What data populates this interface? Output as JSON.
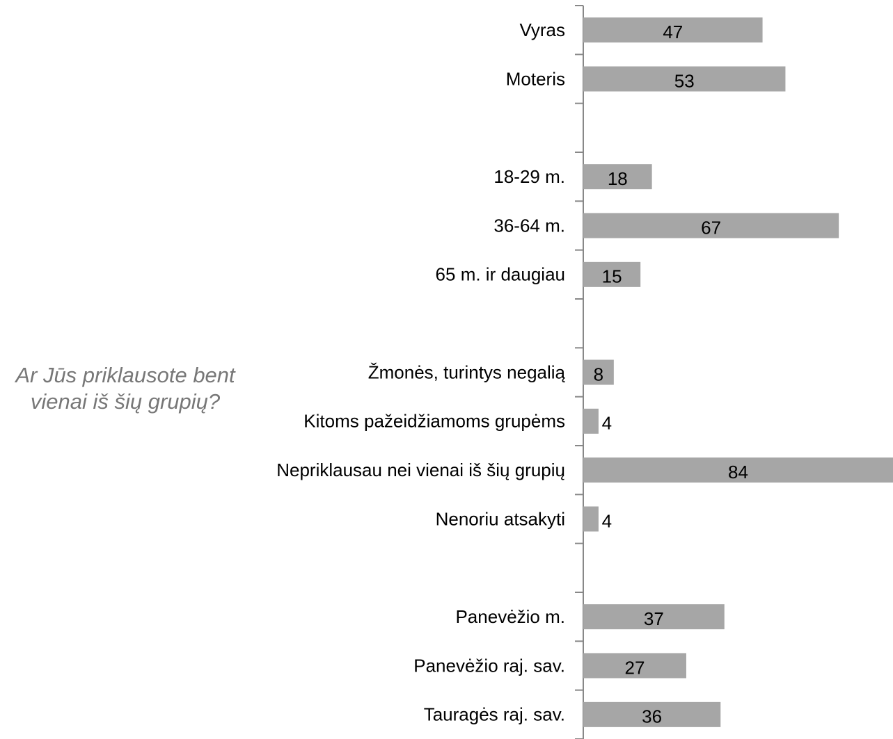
{
  "chart_data": {
    "type": "hbar",
    "categories": [
      "Vyras",
      "Moteris",
      null,
      "18-29 m.",
      "36-64 m.",
      "65 m. ir daugiau",
      null,
      "Žmonės, turintys negalią",
      "Kitoms pažeidžiamoms grupėms",
      "Nepriklausau nei vienai iš šių grupių",
      "Nenoriu atsakyti",
      null,
      "Panevėžio m.",
      "Panevėžio raj. sav.",
      "Tauragės raj. sav."
    ],
    "values": [
      47,
      53,
      null,
      18,
      67,
      15,
      null,
      8,
      4,
      84,
      4,
      null,
      37,
      27,
      36
    ],
    "color": "#a6a6a6",
    "annotation": [
      "Ar Jūs priklausote bent",
      "vienai iš šių grupių?"
    ]
  }
}
